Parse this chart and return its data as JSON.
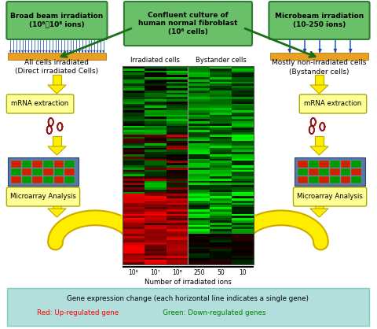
{
  "bg_color": "#ffffff",
  "box_green_color": "#6abf69",
  "box_green_dark": "#2e7d32",
  "legend_bg": "#b2dfdb",
  "cell_orange": "#e8a020",
  "cell_blue": "#4488cc",
  "top_left_box": "Broad beam irradiation\n(10⁶～10⁸ ions)",
  "top_center_box": "Confluent culture of\nhuman normal fibroblast\n(10⁶ cells)",
  "top_right_box": "Microbeam irradiation\n(10-250 ions)",
  "left_label1": "All cells irradiated",
  "left_label2": "(Direct irradiated Cells)",
  "right_label1": "Mostly non-irradiated cells",
  "right_label2": "(Bystander cells)",
  "mrna_label": "mRNA extraction",
  "microarray_label": "Microarray Analysis",
  "heatmap_left_label": "Irradiated cells",
  "heatmap_right_label": "Bystander cells",
  "xaxis_labels": [
    "10⁸",
    "10⁷",
    "10⁶",
    "250",
    "50",
    "10"
  ],
  "xaxis_title": "Number of irradiated ions",
  "legend_line1": "Gene expression change (each horizontal line indicates a single gene)",
  "legend_line2_red": "Red: Up-regulated gene",
  "legend_line2_green": "   Green: Down-regulated genes"
}
